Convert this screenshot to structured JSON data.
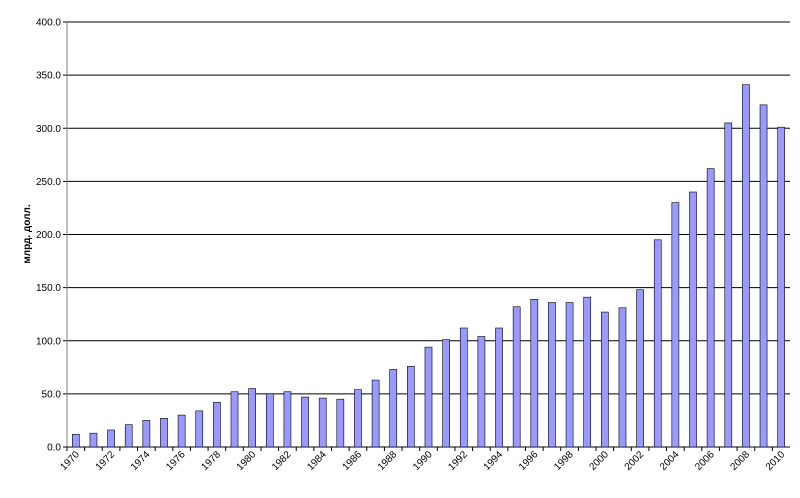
{
  "chart_data": {
    "type": "bar",
    "y_label": "млрд. долл.",
    "categories": [
      "1970",
      null,
      "1972",
      null,
      "1974",
      null,
      "1976",
      null,
      "1978",
      null,
      "1980",
      null,
      "1982",
      null,
      "1984",
      null,
      "1986",
      null,
      "1988",
      null,
      "1990",
      null,
      "1992",
      null,
      "1994",
      null,
      "1996",
      null,
      "1998",
      null,
      "2000",
      null,
      "2002",
      null,
      "2004",
      null,
      "2006",
      null,
      "2008",
      null,
      "2010"
    ],
    "values": [
      12,
      13,
      16,
      21,
      25,
      27,
      30,
      34,
      42,
      52,
      55,
      50,
      52,
      47,
      46,
      45,
      54,
      63,
      73,
      76,
      94,
      101,
      112,
      104,
      112,
      132,
      139,
      136,
      136,
      141,
      127,
      131,
      148,
      195,
      230,
      240,
      262,
      305,
      341,
      322,
      301
    ],
    "color": "#9999ff",
    "ylim": [
      0,
      400
    ],
    "yticks": [
      {
        "value": 0,
        "label": "0.0"
      },
      {
        "value": 50,
        "label": "50.0"
      },
      {
        "value": 100,
        "label": "100.0"
      },
      {
        "value": 150,
        "label": "150.0"
      },
      {
        "value": 200,
        "label": "200.0"
      },
      {
        "value": 250,
        "label": "250.0"
      },
      {
        "value": 300,
        "label": "300.0"
      },
      {
        "value": 350,
        "label": "350.0"
      },
      {
        "value": 400,
        "label": "400.0"
      }
    ],
    "grid": true
  }
}
